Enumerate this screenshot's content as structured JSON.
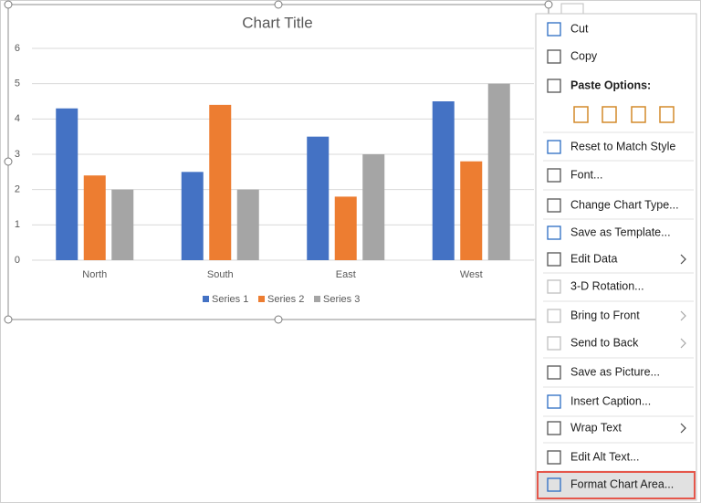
{
  "chart_data": {
    "type": "bar",
    "title": "Chart Title",
    "categories": [
      "North",
      "South",
      "East",
      "West"
    ],
    "series": [
      {
        "name": "Series 1",
        "color": "#4472c4",
        "values": [
          4.3,
          2.5,
          3.5,
          4.5
        ]
      },
      {
        "name": "Series 2",
        "color": "#ed7d31",
        "values": [
          2.4,
          4.4,
          1.8,
          2.8
        ]
      },
      {
        "name": "Series 3",
        "color": "#a5a5a5",
        "values": [
          2,
          2,
          3,
          5
        ]
      }
    ],
    "ylim": [
      0,
      6
    ],
    "yticks": [
      0,
      1,
      2,
      3,
      4,
      5,
      6
    ],
    "grid": true,
    "legend": "bottom"
  },
  "context_menu": {
    "items": [
      {
        "label": "Cut"
      },
      {
        "label": "Copy"
      },
      {
        "label": "Paste Options:",
        "bold": true
      },
      {
        "label": "Reset to Match Style"
      },
      {
        "label": "Font..."
      },
      {
        "label": "Change Chart Type..."
      },
      {
        "label": "Save as Template..."
      },
      {
        "label": "Edit Data",
        "submenu": true
      },
      {
        "label": "3-D Rotation...",
        "disabled": true
      },
      {
        "label": "Bring to Front",
        "disabled": true,
        "submenu": true
      },
      {
        "label": "Send to Back",
        "disabled": true,
        "submenu": true
      },
      {
        "label": "Save as Picture..."
      },
      {
        "label": "Insert Caption..."
      },
      {
        "label": "Wrap Text",
        "submenu": true
      },
      {
        "label": "Edit Alt Text..."
      },
      {
        "label": "Format Chart Area...",
        "highlighted": true
      }
    ]
  }
}
